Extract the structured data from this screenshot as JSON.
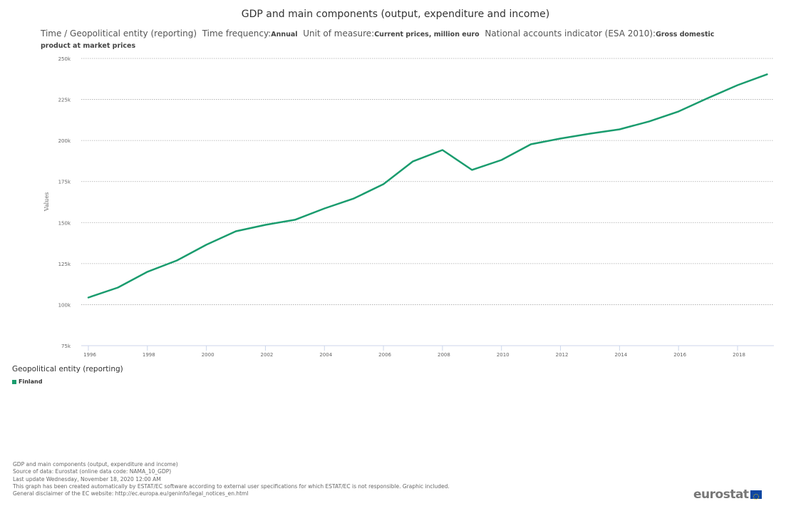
{
  "title": "GDP and main components (output, expenditure and income)",
  "subtitle": {
    "dims": "Time / Geopolitical entity (reporting)",
    "freq_label": "Time frequency:",
    "freq_value": "Annual",
    "unit_label": "Unit of measure:",
    "unit_value": "Current prices, million euro",
    "indicator_label": "National accounts indicator (ESA 2010):",
    "indicator_value": "Gross domestic product at market prices"
  },
  "legend": {
    "title": "Geopolitical entity (reporting)",
    "items": [
      {
        "label": "Finland",
        "color": "#1a9c6e"
      }
    ]
  },
  "footer": [
    "GDP and main components (output, expenditure and income)",
    "Source of data: Eurostat (online data code: NAMA_10_GDP)",
    "Last update Wednesday, November 18, 2020 12:00 AM",
    "This graph has been created automatically by ESTAT/EC software according to external user specifications for which ESTAT/EC is not responsible. Graphic included.",
    "General disclaimer of the EC website: http://ec.europa.eu/geninfo/legal_notices_en.html"
  ],
  "logo": {
    "text": "eurostat",
    "flag_color": "#0e47a1",
    "star_color": "#f5d000"
  },
  "chart_data": {
    "type": "line",
    "title": "GDP and main components (output, expenditure and income)",
    "xlabel": "",
    "ylabel": "Values",
    "x": [
      1996,
      1997,
      1998,
      1999,
      2000,
      2001,
      2002,
      2003,
      2004,
      2005,
      2006,
      2007,
      2008,
      2009,
      2010,
      2011,
      2012,
      2013,
      2014,
      2015,
      2016,
      2017,
      2018,
      2019
    ],
    "x_ticks": [
      "1996",
      "1998",
      "2000",
      "2002",
      "2004",
      "2006",
      "2008",
      "2010",
      "2012",
      "2014",
      "2016",
      "2018"
    ],
    "y_ticks": [
      "75k",
      "100k",
      "125k",
      "150k",
      "175k",
      "200k",
      "225k",
      "250k"
    ],
    "ylim": [
      75000,
      250000
    ],
    "grid": true,
    "legend_position": "bottom-left",
    "series": [
      {
        "name": "Finland",
        "color": "#1a9c6e",
        "values": [
          104300,
          110400,
          120000,
          126900,
          136500,
          144700,
          148600,
          151700,
          158600,
          164700,
          173400,
          187300,
          194200,
          182100,
          188100,
          197700,
          201200,
          204200,
          206800,
          211600,
          217700,
          225900,
          233700,
          240300
        ]
      }
    ]
  }
}
